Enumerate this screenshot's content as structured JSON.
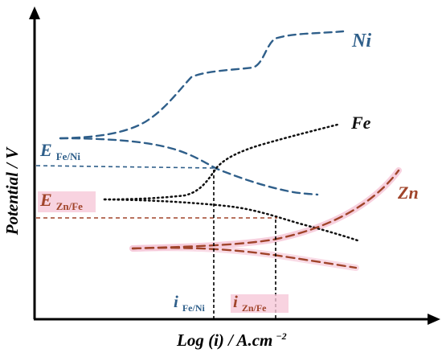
{
  "axes": {
    "y_label": "Potential / V",
    "x_label_main": "Log (i) / A.cm",
    "x_label_exp": "−2"
  },
  "curves": {
    "ni_label": "Ni",
    "fe_label": "Fe",
    "zn_label": "Zn"
  },
  "mixed_potentials": {
    "fe_ni": {
      "symbol": "E",
      "subscript": "Fe/Ni"
    },
    "zn_fe": {
      "symbol": "E",
      "subscript": "Zn/Fe"
    }
  },
  "mixed_currents": {
    "fe_ni": {
      "symbol": "i",
      "subscript": "Fe/Ni"
    },
    "zn_fe": {
      "symbol": "i",
      "subscript": "Zn/Fe"
    }
  },
  "colors": {
    "ni": "#2f5f8a",
    "fe": "#111111",
    "zn": "#a0442a",
    "zn_highlight": "#f6c8d8",
    "e_fe_ni_label": "#2f5f8a",
    "e_zn_fe_label": "#a0442a",
    "i_fe_ni_label": "#2f5f8a",
    "i_zn_fe_label": "#a0442a"
  }
}
